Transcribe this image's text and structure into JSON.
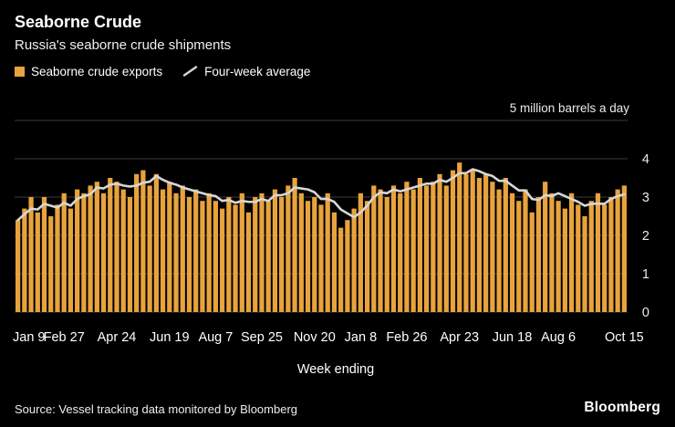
{
  "header": {
    "title": "Seaborne Crude",
    "subtitle": "Russia's seaborne crude shipments",
    "legend": [
      {
        "label": "Seaborne crude exports",
        "type": "bar",
        "color": "#E8A33D"
      },
      {
        "label": "Four-week average",
        "type": "line",
        "color": "#D6D6D6"
      }
    ]
  },
  "chart_data": {
    "type": "bar",
    "title": "Seaborne Crude",
    "subtitle": "Russia's seaborne crude shipments",
    "unit_label": "5 million barrels a day",
    "xlabel": "Week ending",
    "ylabel": "million barrels a day",
    "ylim": [
      0,
      5
    ],
    "yticks": [
      0,
      1,
      2,
      3,
      4
    ],
    "grid": true,
    "legend_position": "top-left",
    "x_tick_labels": [
      "Jan 9",
      "Feb 27",
      "Apr 24",
      "Jun 19",
      "Aug 7",
      "Sep 25",
      "Nov 20",
      "Jan 8",
      "Feb 26",
      "Apr 23",
      "Jun 18",
      "Aug 6",
      "Oct 15"
    ],
    "x_tick_indices": [
      0,
      7,
      15,
      23,
      30,
      37,
      45,
      52,
      59,
      67,
      75,
      82,
      92
    ],
    "series": [
      {
        "name": "Seaborne crude exports",
        "type": "bar",
        "color": "#E8A33D",
        "values": [
          2.4,
          2.7,
          3.0,
          2.6,
          3.0,
          2.5,
          2.8,
          3.1,
          2.7,
          3.2,
          3.1,
          3.3,
          3.4,
          3.1,
          3.5,
          3.4,
          3.2,
          3.0,
          3.6,
          3.7,
          3.3,
          3.6,
          3.2,
          3.4,
          3.1,
          3.3,
          3.0,
          3.2,
          2.9,
          3.1,
          2.9,
          2.7,
          3.0,
          2.8,
          3.1,
          2.6,
          3.0,
          3.1,
          2.9,
          3.2,
          3.0,
          3.3,
          3.5,
          3.1,
          2.9,
          3.0,
          2.8,
          3.1,
          2.6,
          2.2,
          2.4,
          2.7,
          3.1,
          2.9,
          3.3,
          3.2,
          3.0,
          3.3,
          3.1,
          3.4,
          3.2,
          3.5,
          3.3,
          3.4,
          3.6,
          3.3,
          3.7,
          3.9,
          3.6,
          3.7,
          3.5,
          3.6,
          3.4,
          3.2,
          3.5,
          3.1,
          2.9,
          3.2,
          2.6,
          3.0,
          3.4,
          3.1,
          2.9,
          2.7,
          3.1,
          2.8,
          2.5,
          2.9,
          3.1,
          2.8,
          3.0,
          3.2,
          3.3
        ]
      },
      {
        "name": "Four-week average",
        "type": "line",
        "color": "#D6D6D6",
        "derived": "trailing 4-week mean of Seaborne crude exports"
      }
    ]
  },
  "footer": {
    "source": "Source: Vessel tracking data monitored by Bloomberg",
    "brand": "Bloomberg"
  }
}
